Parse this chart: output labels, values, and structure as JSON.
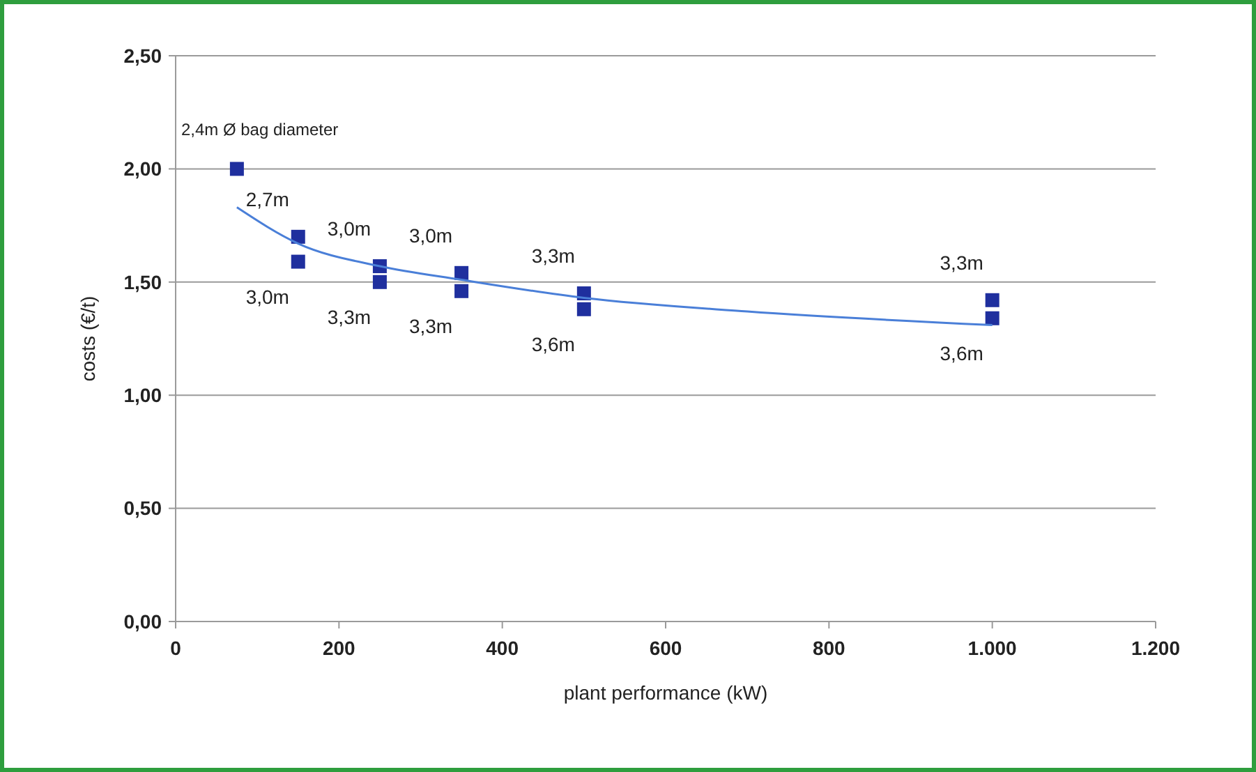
{
  "chart_data": {
    "type": "scatter",
    "xlabel": "plant performance (kW)",
    "ylabel": "costs (€/t)",
    "xlim": [
      0,
      1200
    ],
    "ylim": [
      0,
      2.5
    ],
    "xticks": [
      0,
      200,
      400,
      600,
      800,
      {
        "value": 1000,
        "label": "1.000"
      },
      {
        "value": 1200,
        "label": "1.200"
      }
    ],
    "yticks": [
      {
        "value": 0,
        "label": "0,00"
      },
      {
        "value": 0.5,
        "label": "0,50"
      },
      {
        "value": 1,
        "label": "1,00"
      },
      {
        "value": 1.5,
        "label": "1,50"
      },
      {
        "value": 2,
        "label": "2,00"
      },
      {
        "value": 2.5,
        "label": "2,50"
      }
    ],
    "grid": "y",
    "marker": "square",
    "series": [
      {
        "color": "#1f2f9e",
        "x": [
          75,
          150,
          150,
          250,
          250,
          350,
          350,
          500,
          500,
          1000,
          1000
        ],
        "values": [
          2.0,
          1.7,
          1.59,
          1.57,
          1.5,
          1.54,
          1.46,
          1.45,
          1.38,
          1.42,
          1.34
        ]
      },
      {
        "type": "line",
        "color": "#4a7fd8",
        "marker": "none",
        "x": [
          75,
          150,
          250,
          350,
          500,
          700,
          1000
        ],
        "values": [
          1.83,
          1.67,
          1.57,
          1.51,
          1.43,
          1.37,
          1.31
        ]
      }
    ],
    "annotations": [
      {
        "text": "2,4m Ø bag diameter",
        "x": 75,
        "y": 2.0
      },
      {
        "text": "2,7m",
        "x": 150,
        "y": 1.7
      },
      {
        "text": "3,0m",
        "x": 150,
        "y": 1.59
      },
      {
        "text": "3,0m",
        "x": 250,
        "y": 1.57
      },
      {
        "text": "3,3m",
        "x": 250,
        "y": 1.5
      },
      {
        "text": "3,0m",
        "x": 350,
        "y": 1.54
      },
      {
        "text": "3,3m",
        "x": 350,
        "y": 1.46
      },
      {
        "text": "3,3m",
        "x": 500,
        "y": 1.45
      },
      {
        "text": "3,6m",
        "x": 500,
        "y": 1.38
      },
      {
        "text": "3,3m",
        "x": 1000,
        "y": 1.42
      },
      {
        "text": "3,6m",
        "x": 1000,
        "y": 1.34
      }
    ]
  }
}
